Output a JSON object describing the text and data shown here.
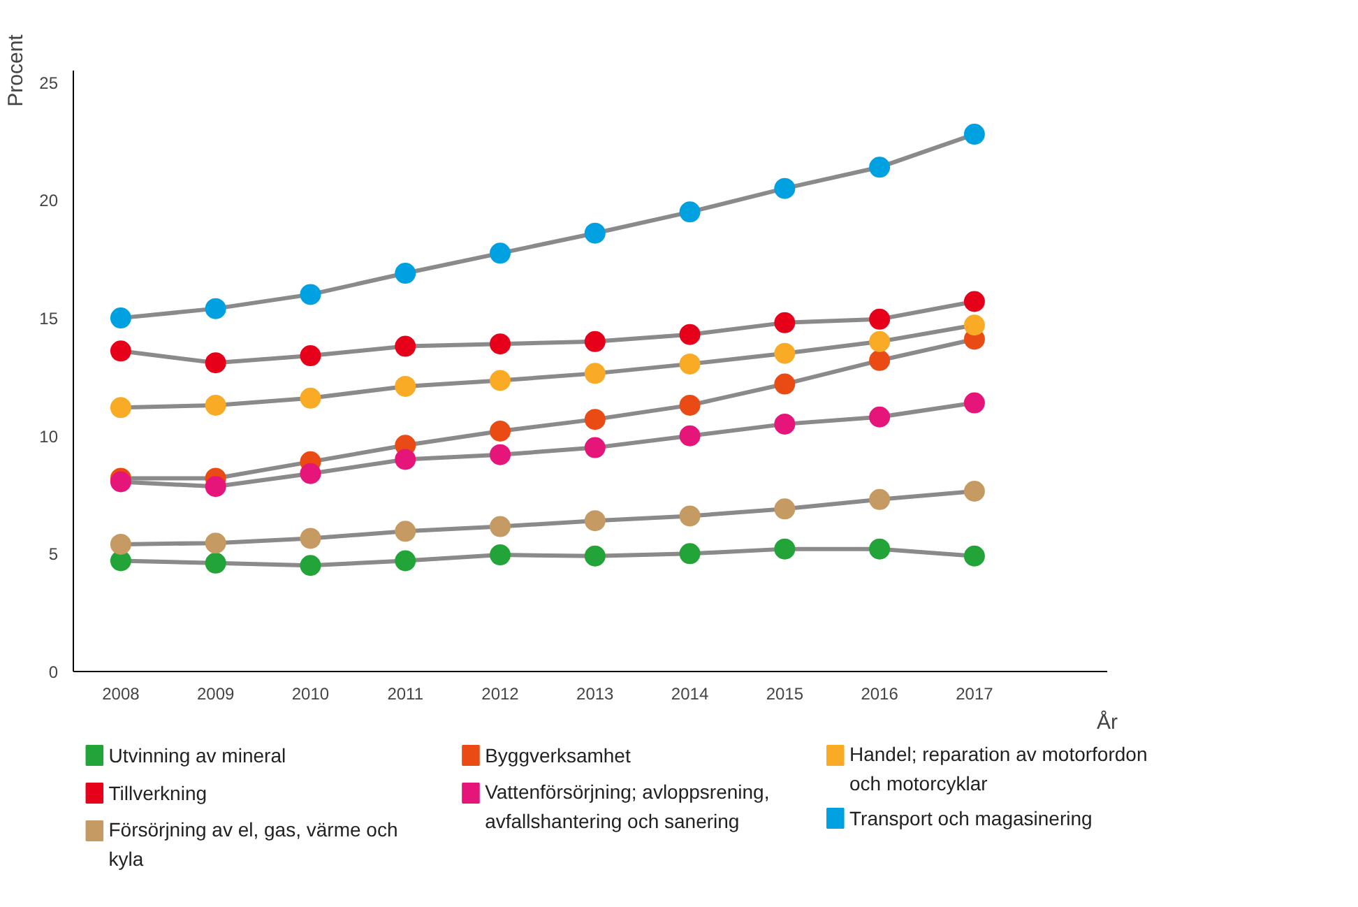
{
  "chart_data": {
    "type": "line",
    "xlabel": "År",
    "ylabel": "Procent",
    "x": [
      2008,
      2009,
      2010,
      2011,
      2012,
      2013,
      2014,
      2015,
      2016,
      2017
    ],
    "xlim": [
      2007.5,
      2018.4
    ],
    "xticks": [
      2008,
      2009,
      2010,
      2011,
      2012,
      2013,
      2014,
      2015,
      2016,
      2017
    ],
    "ylim": [
      0,
      25.5
    ],
    "yticks": [
      0,
      5,
      10,
      15,
      20,
      25
    ],
    "grid": false,
    "legend": "bottom",
    "marker": "circle",
    "line_style": "solid",
    "series": [
      {
        "name": "Utvinning av mineral",
        "color": "#22a438",
        "values": [
          4.7,
          4.6,
          4.5,
          4.7,
          4.95,
          4.9,
          5.0,
          5.2,
          5.2,
          4.9
        ]
      },
      {
        "name": "Tillverkning",
        "color": "#e6001a",
        "values": [
          13.6,
          13.1,
          13.4,
          13.8,
          13.9,
          14.0,
          14.3,
          14.8,
          14.95,
          15.7
        ]
      },
      {
        "name": "Försörjning av el, gas, värme och kyla",
        "color": "#c59a63",
        "values": [
          5.4,
          5.45,
          5.65,
          5.95,
          6.15,
          6.4,
          6.6,
          6.9,
          7.3,
          7.65
        ]
      },
      {
        "name": "Byggverksamhet",
        "color": "#ea4b14",
        "values": [
          8.2,
          8.2,
          8.9,
          9.6,
          10.2,
          10.7,
          11.3,
          12.2,
          13.2,
          14.1
        ]
      },
      {
        "name": "Vattenförsörjning; avloppsrening, avfallshantering och sanering",
        "color": "#e5157a",
        "values": [
          8.05,
          7.85,
          8.4,
          9.0,
          9.2,
          9.5,
          10.0,
          10.5,
          10.8,
          11.4
        ]
      },
      {
        "name": "Handel; reparation av motorfordon och motorcyklar",
        "color": "#f9ab26",
        "values": [
          11.2,
          11.3,
          11.6,
          12.1,
          12.35,
          12.65,
          13.05,
          13.5,
          14.0,
          14.7
        ]
      },
      {
        "name": "Transport och magasinering",
        "color": "#00a1e0",
        "values": [
          15.0,
          15.4,
          16.0,
          16.9,
          17.75,
          18.6,
          19.5,
          20.5,
          21.4,
          22.8
        ]
      }
    ]
  }
}
